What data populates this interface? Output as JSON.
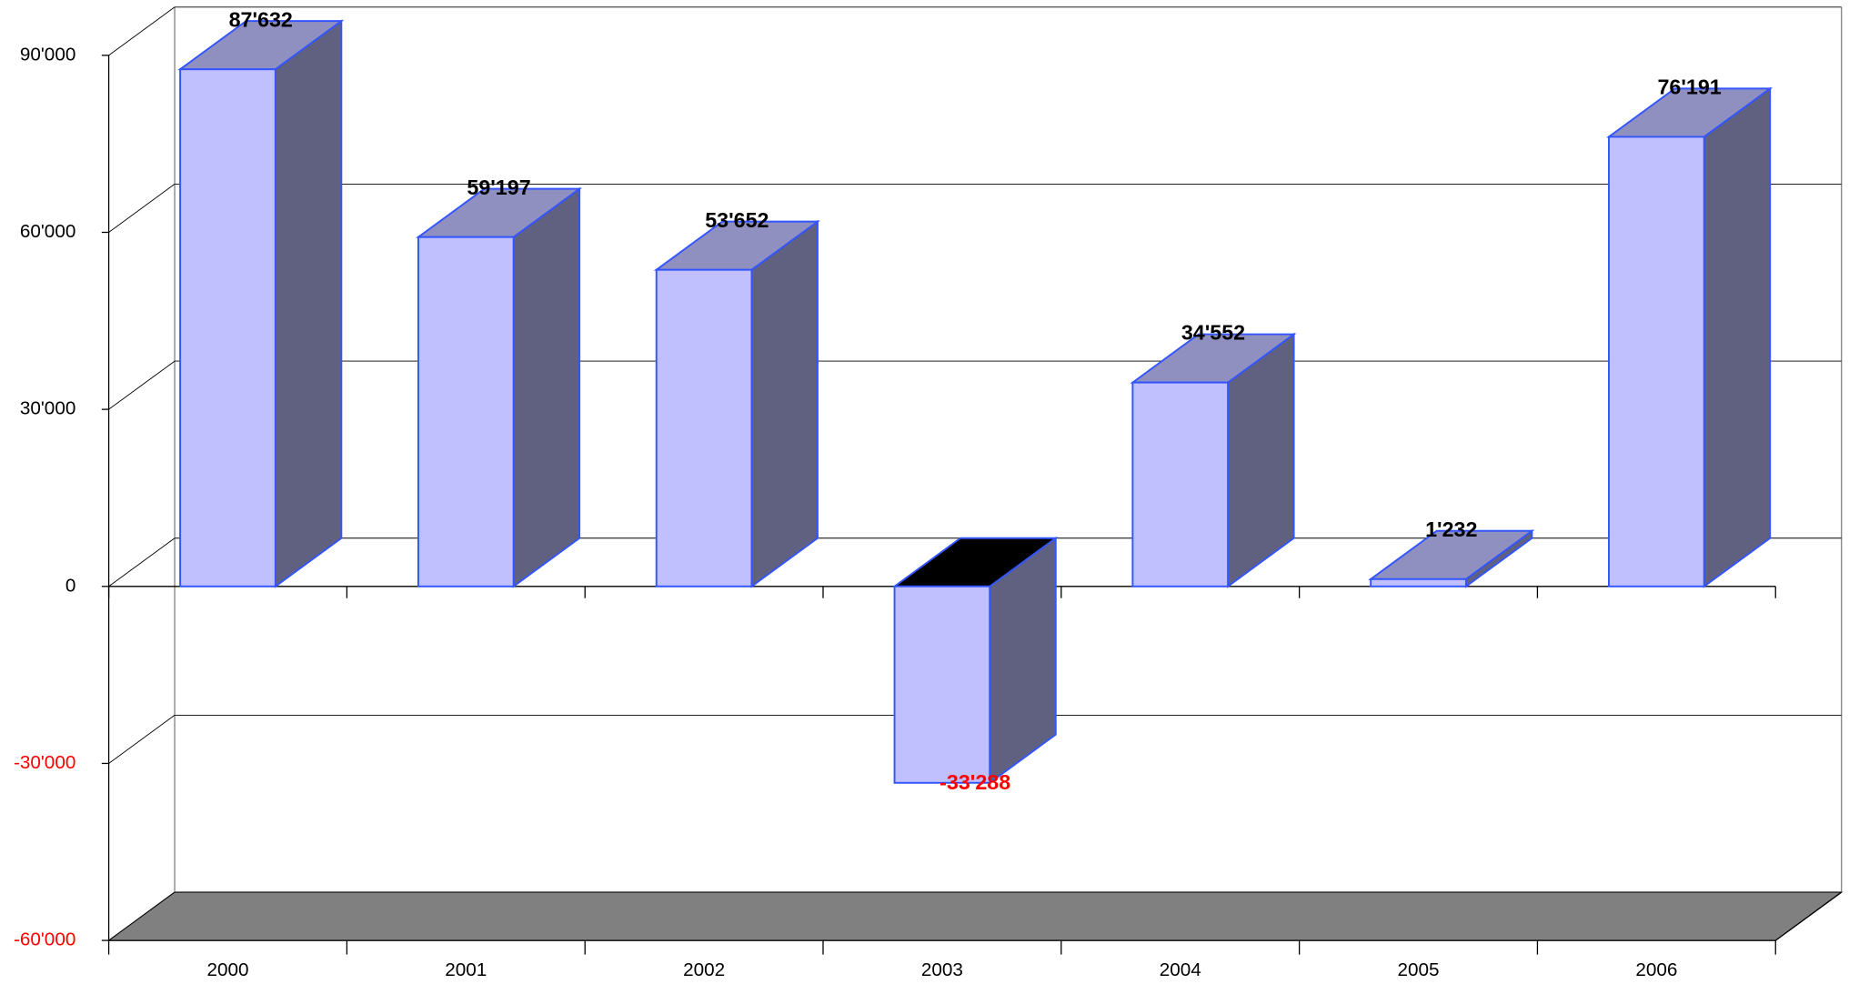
{
  "chart_data": {
    "type": "bar",
    "categories": [
      "2000",
      "2001",
      "2002",
      "2003",
      "2004",
      "2005",
      "2006"
    ],
    "values": [
      87632,
      59197,
      53652,
      -33288,
      34552,
      1232,
      76191
    ],
    "value_labels": [
      "87'632",
      "59'197",
      "53'652",
      "-33'288",
      "34'552",
      "1'232",
      "76'191"
    ],
    "ylim": [
      -60000,
      90000
    ],
    "yticks": [
      {
        "value": -60000,
        "label": "-60'000"
      },
      {
        "value": -30000,
        "label": "-30'000"
      },
      0,
      {
        "value": 30000,
        "label": "30'000"
      },
      {
        "value": 60000,
        "label": "60'000"
      },
      {
        "value": 90000,
        "label": "90'000"
      }
    ],
    "grid": true,
    "colors": {
      "front": "#c0c0ff",
      "side": "#606080",
      "top": "#9090c0",
      "edge": "#3355ff",
      "negative": "#ff0000"
    }
  }
}
